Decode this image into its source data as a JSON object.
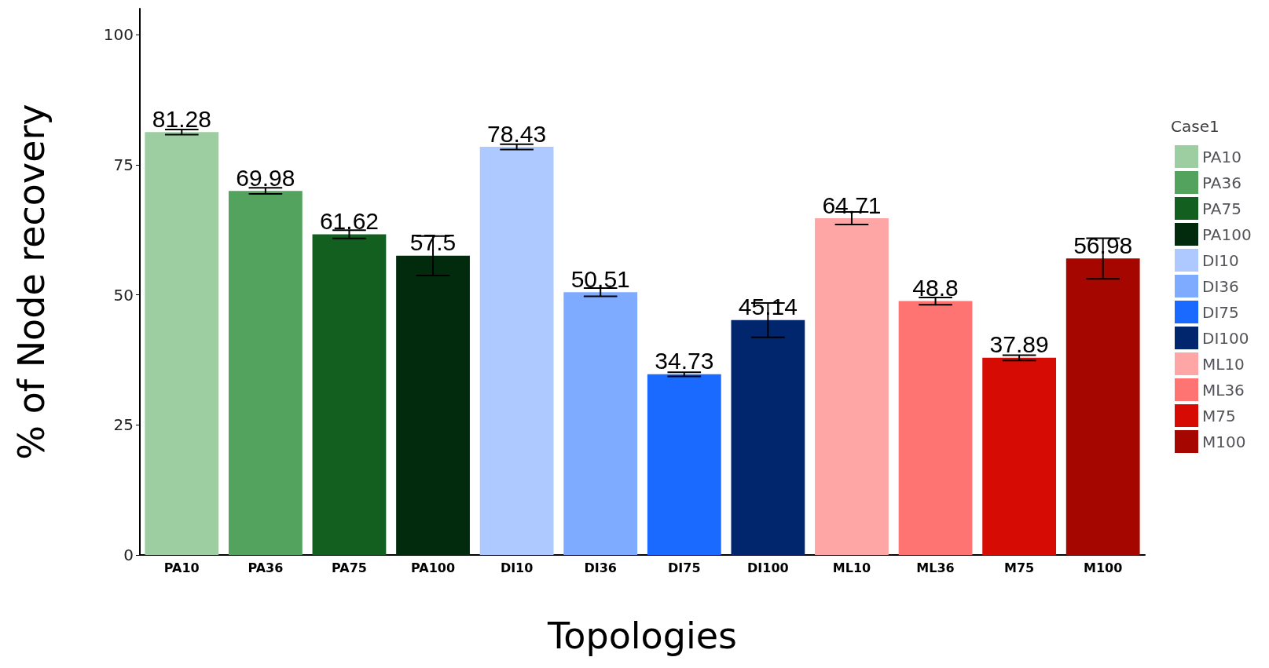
{
  "chart_data": {
    "type": "bar",
    "xlabel": "Topologies",
    "ylabel": "% of Node recovery",
    "legend_title": "Case1",
    "legend": "right",
    "stacked": true,
    "categories": [
      "PA10",
      "PA36",
      "PA75",
      "PA100",
      "DI10",
      "DI36",
      "DI75",
      "DI100",
      "ML10",
      "ML36",
      "M75",
      "M100"
    ],
    "series": [
      {
        "name": "PA10",
        "color": "#9ccea1",
        "values": [
          81.28,
          null,
          null,
          null,
          null,
          null,
          null,
          null,
          null,
          null,
          null,
          null
        ],
        "errors": [
          0.5,
          null,
          null,
          null,
          null,
          null,
          null,
          null,
          null,
          null,
          null,
          null
        ]
      },
      {
        "name": "PA36",
        "color": "#53a35f",
        "values": [
          null,
          69.98,
          null,
          null,
          null,
          null,
          null,
          null,
          null,
          null,
          null,
          null
        ],
        "errors": [
          null,
          0.6,
          null,
          null,
          null,
          null,
          null,
          null,
          null,
          null,
          null,
          null
        ]
      },
      {
        "name": "PA75",
        "color": "#125f20",
        "values": [
          null,
          null,
          61.62,
          null,
          null,
          null,
          null,
          null,
          null,
          null,
          null,
          null
        ],
        "errors": [
          null,
          null,
          0.8,
          null,
          null,
          null,
          null,
          null,
          null,
          null,
          null,
          null
        ]
      },
      {
        "name": "PA100",
        "color": "#012b0c",
        "values": [
          null,
          null,
          null,
          57.5,
          null,
          null,
          null,
          null,
          null,
          null,
          null,
          null
        ],
        "errors": [
          null,
          null,
          null,
          3.8,
          null,
          null,
          null,
          null,
          null,
          null,
          null,
          null
        ]
      },
      {
        "name": "DI10",
        "color": "#adc9ff",
        "values": [
          null,
          null,
          null,
          null,
          78.43,
          null,
          null,
          null,
          null,
          null,
          null,
          null
        ],
        "errors": [
          null,
          null,
          null,
          null,
          0.5,
          null,
          null,
          null,
          null,
          null,
          null,
          null
        ]
      },
      {
        "name": "DI36",
        "color": "#7eaaff",
        "values": [
          null,
          null,
          null,
          null,
          null,
          50.51,
          null,
          null,
          null,
          null,
          null,
          null
        ],
        "errors": [
          null,
          null,
          null,
          null,
          null,
          0.8,
          null,
          null,
          null,
          null,
          null,
          null
        ]
      },
      {
        "name": "DI75",
        "color": "#1a6aff",
        "values": [
          null,
          null,
          null,
          null,
          null,
          null,
          34.73,
          null,
          null,
          null,
          null,
          null
        ],
        "errors": [
          null,
          null,
          null,
          null,
          null,
          null,
          0.4,
          null,
          null,
          null,
          null,
          null
        ]
      },
      {
        "name": "DI100",
        "color": "#02266e",
        "values": [
          null,
          null,
          null,
          null,
          null,
          null,
          null,
          45.14,
          null,
          null,
          null,
          null
        ],
        "errors": [
          null,
          null,
          null,
          null,
          null,
          null,
          null,
          3.3,
          null,
          null,
          null,
          null
        ]
      },
      {
        "name": "ML10",
        "color": "#fea6a6",
        "values": [
          null,
          null,
          null,
          null,
          null,
          null,
          null,
          null,
          64.71,
          null,
          null,
          null
        ],
        "errors": [
          null,
          null,
          null,
          null,
          null,
          null,
          null,
          null,
          1.2,
          null,
          null,
          null
        ]
      },
      {
        "name": "ML36",
        "color": "#fe7472",
        "values": [
          null,
          null,
          null,
          null,
          null,
          null,
          null,
          null,
          null,
          48.8,
          null,
          null
        ],
        "errors": [
          null,
          null,
          null,
          null,
          null,
          null,
          null,
          null,
          null,
          0.7,
          null,
          null
        ]
      },
      {
        "name": "M75",
        "color": "#d60b04",
        "values": [
          null,
          null,
          null,
          null,
          null,
          null,
          null,
          null,
          null,
          null,
          37.89,
          null
        ],
        "errors": [
          null,
          null,
          null,
          null,
          null,
          null,
          null,
          null,
          null,
          null,
          0.5,
          null
        ]
      },
      {
        "name": "M100",
        "color": "#a50600",
        "values": [
          null,
          null,
          null,
          null,
          null,
          null,
          null,
          null,
          null,
          null,
          null,
          56.98
        ],
        "errors": [
          null,
          null,
          null,
          null,
          null,
          null,
          null,
          null,
          null,
          null,
          null,
          3.9
        ]
      }
    ],
    "ylim": [
      0,
      105
    ],
    "yticks": [
      0,
      25,
      50,
      75,
      100
    ],
    "grid": false,
    "data_labels": true
  }
}
